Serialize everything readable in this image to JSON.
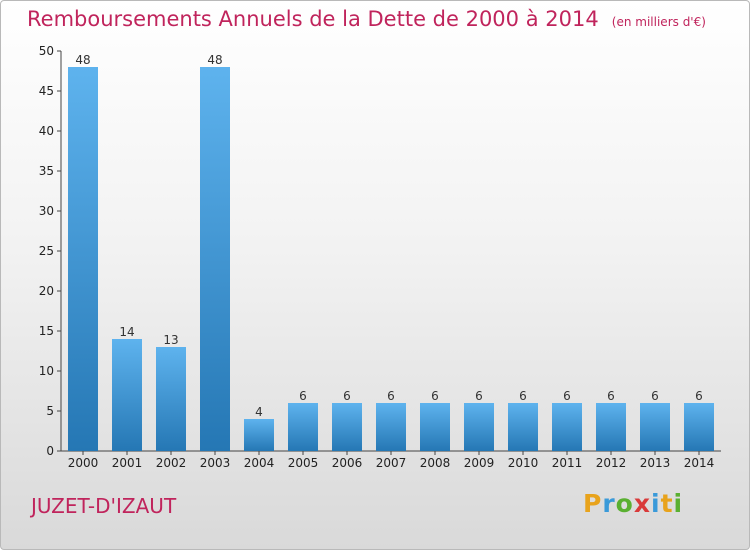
{
  "header": {
    "title": "Remboursements Annuels de la Dette de 2000 à 2014",
    "unit": "(en milliers d'€)"
  },
  "footer": {
    "commune": "JUZET-D'IZAUT",
    "logo_letters": [
      "P",
      "r",
      "o",
      "x",
      "i",
      "t",
      "i"
    ],
    "logo_colors": [
      "#e8a31c",
      "#3a9ad9",
      "#5ab031",
      "#d93a3a",
      "#3a9ad9",
      "#e8a31c",
      "#5ab031"
    ]
  },
  "colors": {
    "title": "#c0245c",
    "bar_top": "#5eb3ee",
    "bar_bottom": "#2577b4"
  },
  "chart_data": {
    "type": "bar",
    "title": "Remboursements Annuels de la Dette de 2000 à 2014",
    "xlabel": "",
    "ylabel": "",
    "categories": [
      "2000",
      "2001",
      "2002",
      "2003",
      "2004",
      "2005",
      "2006",
      "2007",
      "2008",
      "2009",
      "2010",
      "2011",
      "2012",
      "2013",
      "2014"
    ],
    "values": [
      48,
      14,
      13,
      48,
      4,
      6,
      6,
      6,
      6,
      6,
      6,
      6,
      6,
      6,
      6
    ],
    "ylim": [
      0,
      50
    ],
    "yticks": [
      0,
      5,
      10,
      15,
      20,
      25,
      30,
      35,
      40,
      45,
      50
    ],
    "grid": false
  }
}
